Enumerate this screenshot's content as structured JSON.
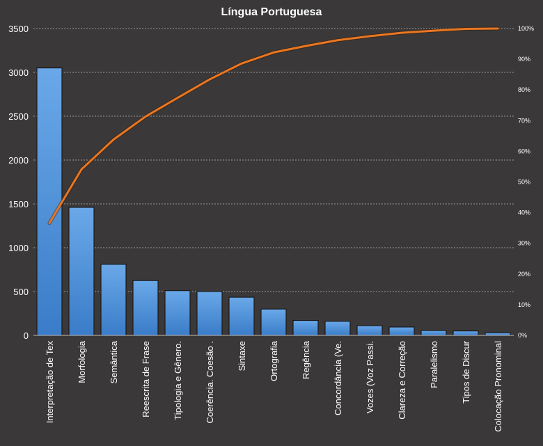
{
  "chart_data": {
    "type": "bar",
    "title": "Língua Portuguesa",
    "categories": [
      "Interpretação de Tex",
      "Morfologia",
      "Semântica",
      "Reescrita de Frase",
      "Tipologia e Gênero.",
      "Coerência. Coesão .",
      "Sintaxe",
      "Ortografia",
      "Regência",
      "Concordância (Ve.",
      "Vozes (Voz Passi.",
      "Clareza e Correção",
      "Paralelismo",
      "Tipos de Discur",
      "Colocação Pronominal"
    ],
    "series": [
      {
        "type": "bar",
        "values": [
          3050,
          1460,
          810,
          625,
          510,
          500,
          435,
          300,
          170,
          160,
          110,
          95,
          55,
          50,
          30
        ],
        "color": "#4a90d9"
      },
      {
        "type": "line",
        "axis": "right",
        "values": [
          36.6,
          54.1,
          63.8,
          71.3,
          77.4,
          83.4,
          88.6,
          92.2,
          94.3,
          96.2,
          97.5,
          98.6,
          99.3,
          99.9,
          100
        ],
        "color": "#e87722"
      }
    ],
    "ylim": [
      0,
      3500
    ],
    "yticks": [
      0,
      500,
      1000,
      1500,
      2000,
      2500,
      3000,
      3500
    ],
    "y2lim": [
      0,
      100
    ],
    "y2ticks": [
      "0%",
      "10%",
      "20%",
      "30%",
      "40%",
      "50%",
      "60%",
      "70%",
      "80%",
      "90%",
      "100%"
    ],
    "grid": true,
    "background": "#3a3838"
  }
}
